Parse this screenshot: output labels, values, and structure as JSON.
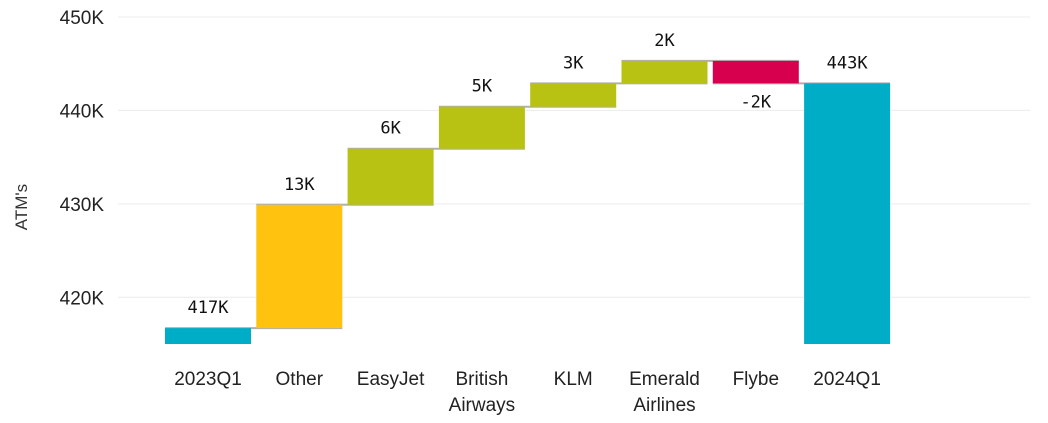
{
  "chart_data": {
    "type": "waterfall",
    "ylabel": "ATM's",
    "ylim": [
      415,
      450
    ],
    "yticks": [
      420,
      430,
      440,
      450
    ],
    "ytick_labels": [
      "420K",
      "430K",
      "440K",
      "450K"
    ],
    "grid": true,
    "steps": [
      {
        "category": "2023Q1",
        "lines": [
          "2023Q1"
        ],
        "kind": "total",
        "start": 415,
        "end": 416.7,
        "label": "417K",
        "color": "#00ADC6"
      },
      {
        "category": "Other",
        "lines": [
          "Other"
        ],
        "kind": "increase",
        "start": 416.7,
        "end": 429.9,
        "label": "13K",
        "color": "#FFC20E"
      },
      {
        "category": "EasyJet",
        "lines": [
          "EasyJet"
        ],
        "kind": "increase",
        "start": 429.9,
        "end": 435.9,
        "label": "6K",
        "color": "#B8C212"
      },
      {
        "category": "British Airways",
        "lines": [
          "British",
          "Airways"
        ],
        "kind": "increase",
        "start": 435.9,
        "end": 440.4,
        "label": "5K",
        "color": "#B8C212"
      },
      {
        "category": "KLM",
        "lines": [
          "KLM"
        ],
        "kind": "increase",
        "start": 440.4,
        "end": 442.9,
        "label": "3K",
        "color": "#B8C212"
      },
      {
        "category": "Emerald Airlines",
        "lines": [
          "Emerald",
          "Airlines"
        ],
        "kind": "increase",
        "start": 442.9,
        "end": 445.3,
        "label": "2K",
        "color": "#B8C212"
      },
      {
        "category": "Flybe",
        "lines": [
          "Flybe"
        ],
        "kind": "decrease",
        "start": 445.3,
        "end": 442.9,
        "label": "-2K",
        "color": "#D6004F"
      },
      {
        "category": "2024Q1",
        "lines": [
          "2024Q1"
        ],
        "kind": "total",
        "start": 415,
        "end": 442.9,
        "label": "443K",
        "color": "#00ADC6"
      }
    ]
  }
}
